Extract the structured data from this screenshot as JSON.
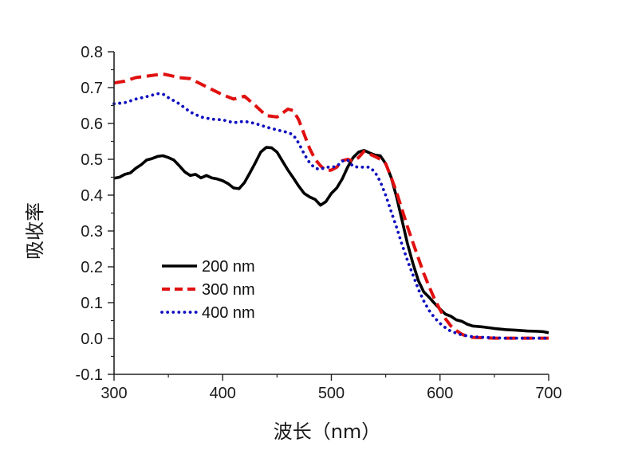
{
  "chart_data": {
    "type": "line",
    "title": "",
    "xlabel": "波长（nm）",
    "ylabel": "吸收率",
    "xlim": [
      300,
      700
    ],
    "ylim": [
      -0.1,
      0.8
    ],
    "xticks": [
      300,
      400,
      500,
      600,
      700
    ],
    "xtick_labels": [
      "300",
      "400",
      "500",
      "600",
      "700"
    ],
    "yticks": [
      -0.1,
      0.0,
      0.1,
      0.2,
      0.3,
      0.4,
      0.5,
      0.6,
      0.7,
      0.8
    ],
    "ytick_labels": [
      "-0.1",
      "0.0",
      "0.1",
      "0.2",
      "0.3",
      "0.4",
      "0.5",
      "0.6",
      "0.7",
      "0.8"
    ],
    "grid": false,
    "legend_position": "lower-left",
    "series": [
      {
        "name": "200 nm",
        "color": "#000000",
        "style": "solid",
        "x": [
          300,
          305,
          310,
          315,
          320,
          325,
          330,
          335,
          340,
          345,
          350,
          355,
          360,
          365,
          370,
          375,
          380,
          385,
          390,
          395,
          400,
          405,
          410,
          415,
          420,
          425,
          430,
          435,
          440,
          445,
          450,
          455,
          460,
          465,
          470,
          475,
          480,
          485,
          490,
          495,
          500,
          505,
          510,
          515,
          520,
          525,
          530,
          535,
          540,
          545,
          550,
          555,
          560,
          565,
          570,
          575,
          580,
          585,
          590,
          595,
          600,
          605,
          610,
          615,
          620,
          625,
          630,
          640,
          650,
          660,
          670,
          680,
          690,
          695,
          700
        ],
        "y": [
          0.447,
          0.45,
          0.458,
          0.462,
          0.475,
          0.485,
          0.498,
          0.502,
          0.508,
          0.51,
          0.505,
          0.498,
          0.482,
          0.465,
          0.455,
          0.458,
          0.448,
          0.455,
          0.448,
          0.445,
          0.44,
          0.432,
          0.42,
          0.418,
          0.435,
          0.462,
          0.49,
          0.52,
          0.533,
          0.532,
          0.52,
          0.495,
          0.47,
          0.448,
          0.425,
          0.405,
          0.395,
          0.388,
          0.372,
          0.382,
          0.405,
          0.42,
          0.445,
          0.478,
          0.505,
          0.52,
          0.525,
          0.518,
          0.512,
          0.51,
          0.488,
          0.45,
          0.395,
          0.33,
          0.265,
          0.21,
          0.162,
          0.13,
          0.115,
          0.098,
          0.082,
          0.068,
          0.062,
          0.052,
          0.048,
          0.04,
          0.035,
          0.032,
          0.028,
          0.025,
          0.023,
          0.021,
          0.02,
          0.019,
          0.016
        ]
      },
      {
        "name": "300 nm",
        "color": "#e01010",
        "style": "dashed",
        "x": [
          300,
          310,
          320,
          330,
          340,
          345,
          350,
          360,
          370,
          380,
          390,
          400,
          410,
          420,
          430,
          440,
          450,
          460,
          465,
          470,
          475,
          480,
          485,
          490,
          495,
          500,
          505,
          510,
          515,
          520,
          525,
          530,
          535,
          540,
          545,
          550,
          555,
          560,
          565,
          570,
          575,
          580,
          585,
          590,
          595,
          600,
          605,
          610,
          615,
          620,
          625,
          630,
          640,
          650,
          660,
          670,
          680,
          690,
          700
        ],
        "y": [
          0.713,
          0.718,
          0.728,
          0.732,
          0.736,
          0.738,
          0.735,
          0.728,
          0.725,
          0.71,
          0.695,
          0.68,
          0.668,
          0.676,
          0.65,
          0.622,
          0.618,
          0.64,
          0.636,
          0.61,
          0.57,
          0.53,
          0.5,
          0.482,
          0.468,
          0.47,
          0.478,
          0.496,
          0.5,
          0.495,
          0.505,
          0.522,
          0.515,
          0.508,
          0.5,
          0.488,
          0.45,
          0.408,
          0.36,
          0.312,
          0.268,
          0.225,
          0.182,
          0.145,
          0.11,
          0.08,
          0.055,
          0.035,
          0.022,
          0.012,
          0.006,
          0.003,
          0.002,
          0.001,
          0.001,
          0.001,
          0.001,
          0.001,
          0.001
        ]
      },
      {
        "name": "400 nm",
        "color": "#1010c0",
        "style": "dotted",
        "x": [
          300,
          310,
          320,
          330,
          340,
          345,
          350,
          360,
          370,
          380,
          390,
          400,
          410,
          420,
          430,
          440,
          450,
          460,
          465,
          470,
          475,
          480,
          485,
          490,
          495,
          500,
          505,
          510,
          515,
          520,
          525,
          530,
          535,
          540,
          545,
          550,
          555,
          560,
          565,
          570,
          575,
          580,
          585,
          590,
          595,
          600,
          605,
          610,
          620,
          630,
          640,
          650,
          660,
          670,
          680,
          690,
          700
        ],
        "y": [
          0.655,
          0.658,
          0.668,
          0.675,
          0.683,
          0.682,
          0.672,
          0.655,
          0.632,
          0.618,
          0.612,
          0.61,
          0.602,
          0.606,
          0.6,
          0.59,
          0.582,
          0.575,
          0.568,
          0.545,
          0.515,
          0.49,
          0.475,
          0.472,
          0.478,
          0.478,
          0.48,
          0.495,
          0.498,
          0.48,
          0.478,
          0.478,
          0.478,
          0.465,
          0.438,
          0.4,
          0.355,
          0.31,
          0.262,
          0.218,
          0.178,
          0.138,
          0.105,
          0.078,
          0.058,
          0.042,
          0.03,
          0.02,
          0.01,
          0.005,
          0.003,
          0.002,
          0.001,
          0.001,
          0.001,
          0.001,
          0.001
        ]
      }
    ]
  }
}
